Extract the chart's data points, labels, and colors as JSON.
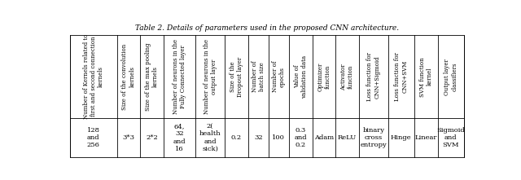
{
  "title": "Table 2. Details of parameters used in the proposed CNN architecture.",
  "headers": [
    "Number of Kernels related to\nfirst and second connection\nkernels",
    "Size of the convolution\nkernels",
    "Size of the max pooling\nkernels",
    "Number of neurons in the\nFully Connected layer",
    "Number of neurons in the\noutput layer",
    "Size of the\nDropout layer",
    "Number of\nbatch size",
    "Number of\nepochs",
    "Value of\nvalidation data",
    "Optimizer\nfunction",
    "Activator\nfunction",
    "Loss function for\nCNN+Sigmoid",
    "Loss function for\nCNN+SVM",
    "SVM function\nkernel",
    "Output layer\nclassifiers"
  ],
  "values": [
    "128\nand\n256",
    "3*3",
    "2*2",
    "64,\n32\nand\n16",
    "2(\nhealth\nand\nsick)",
    "0.2",
    "32",
    "100",
    "0.3\nand\n0.2",
    "Adam",
    "ReLU",
    "binary\ncross\nentropy",
    "Hinge",
    "Linear",
    "Sigmoid\nand\nSVM"
  ],
  "bg_color": "#ffffff",
  "text_color": "#000000",
  "title_fontsize": 6.5,
  "header_fontsize": 5.0,
  "value_fontsize": 6.0,
  "col_widths": [
    1.6,
    0.8,
    0.8,
    1.1,
    1.0,
    0.8,
    0.7,
    0.7,
    0.8,
    0.8,
    0.8,
    1.0,
    0.9,
    0.8,
    0.9
  ]
}
